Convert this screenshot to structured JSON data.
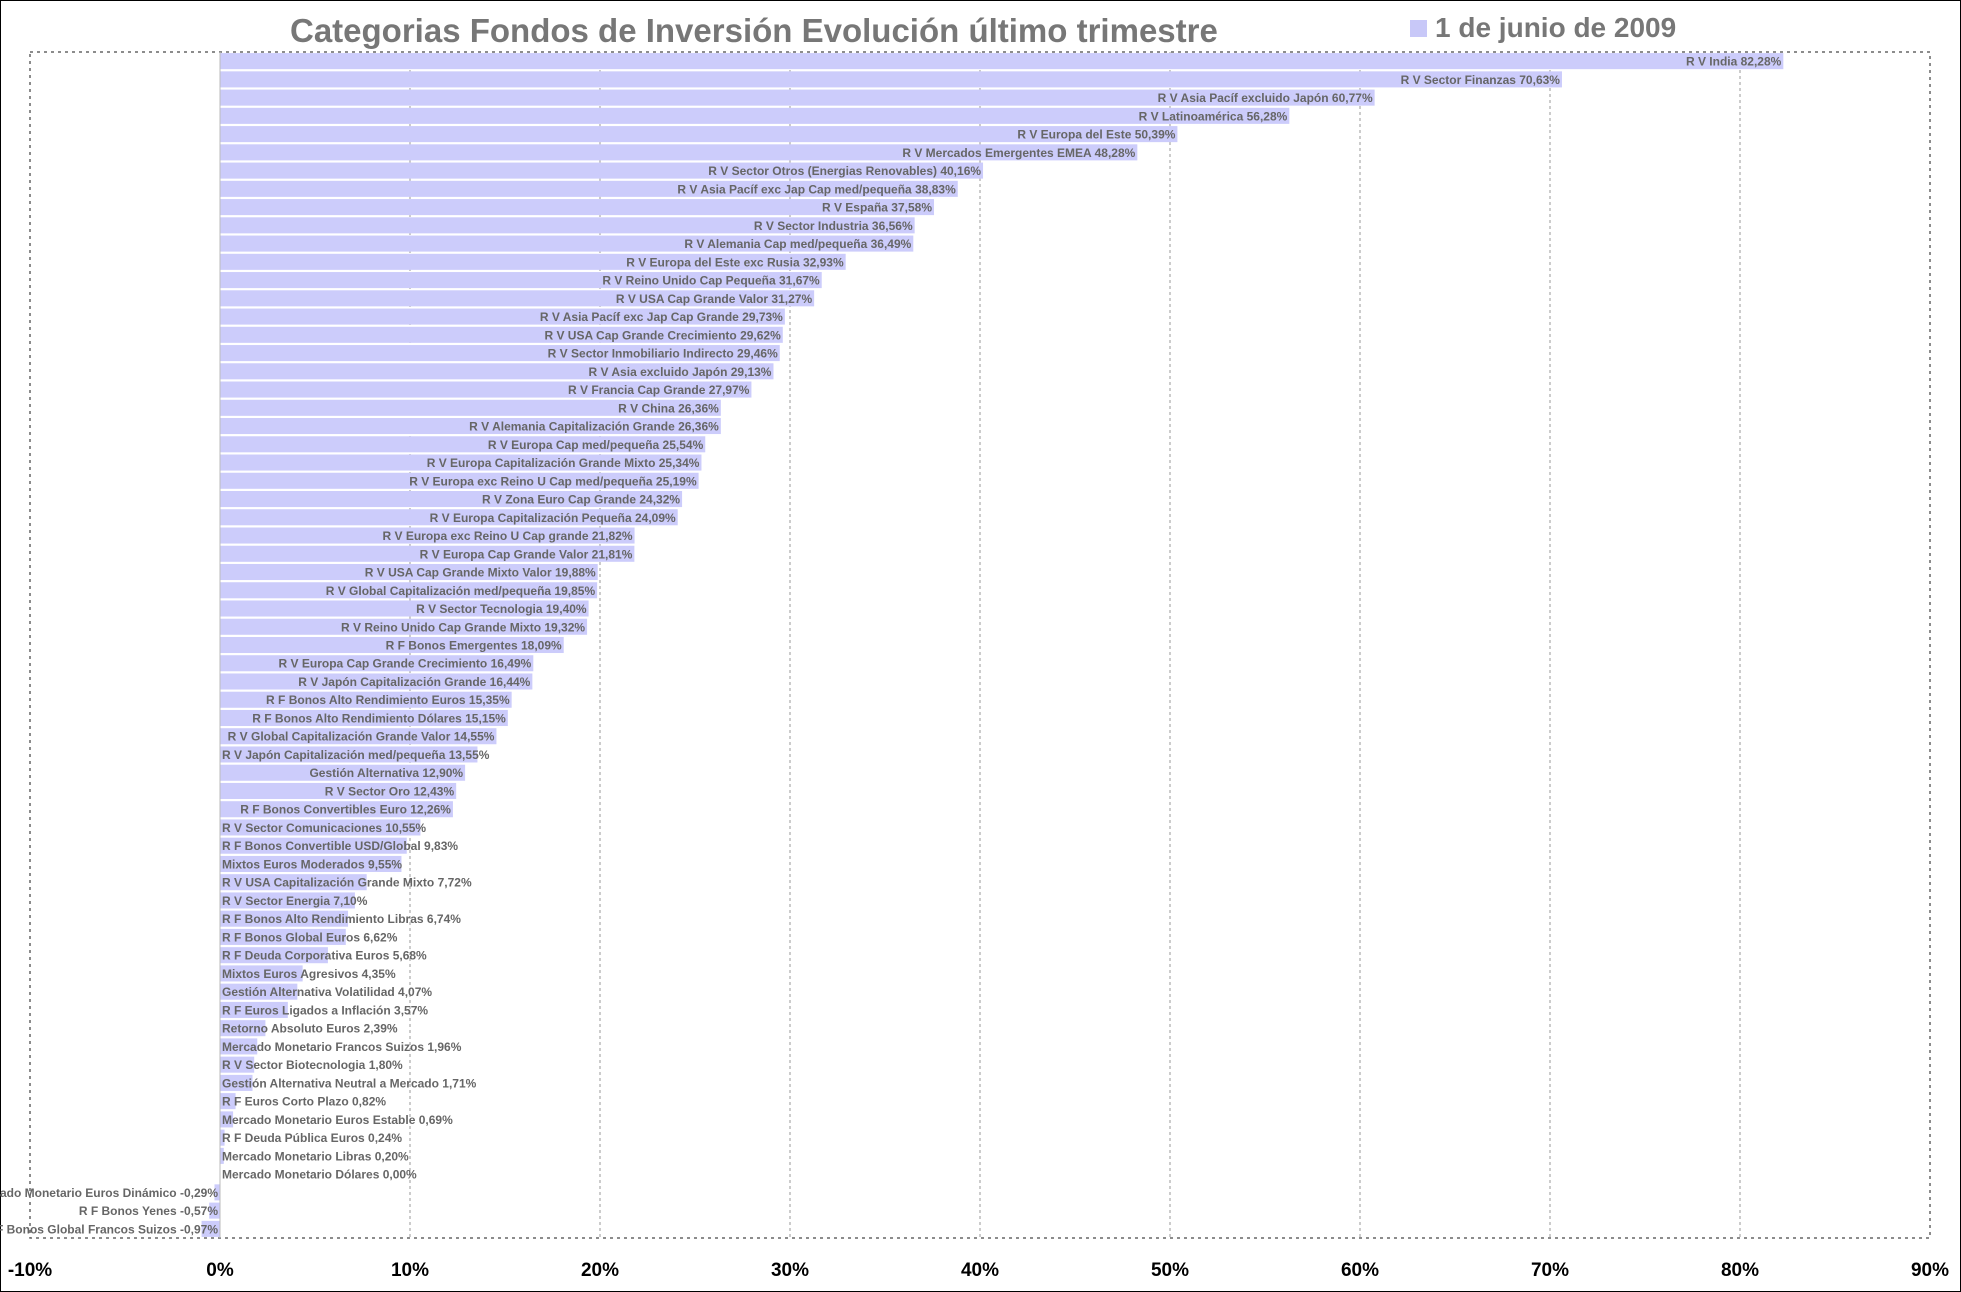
{
  "chart_data": {
    "type": "bar",
    "orientation": "horizontal",
    "title": "Categorias Fondos de Inversión Evolución último trimestre",
    "xlabel": "",
    "ylabel": "",
    "xlim": [
      -10,
      90
    ],
    "xticks": [
      "-10%",
      "0%",
      "10%",
      "20%",
      "30%",
      "40%",
      "50%",
      "60%",
      "70%",
      "80%",
      "90%"
    ],
    "grid": "vertical dashed",
    "legend_position": "top-right",
    "bar_color": "#ccccfb",
    "series": [
      {
        "name": "1 de junio de 2009",
        "categories": [
          "R V India",
          "R V Sector Finanzas",
          "R V Asia Pacíf excluido Japón",
          "R V Latinoamérica",
          "R V Europa del Este",
          "R V Mercados Emergentes EMEA",
          "R V Sector Otros (Energias Renovables)",
          "R V Asia Pacíf exc Jap Cap med/pequeña",
          "R V España",
          "R V Sector Industria",
          "R V Alemania Cap med/pequeña",
          "R V Europa del Este exc Rusia",
          "R V Reino Unido Cap Pequeña",
          "R V USA Cap Grande Valor",
          "R V Asia Pacíf exc Jap Cap Grande",
          "R V USA Cap Grande Crecimiento",
          "R V Sector Inmobiliario Indirecto",
          "R V Asia excluido Japón",
          "R V Francia Cap Grande",
          "R V China",
          "R V Alemania Capitalización Grande",
          "R V Europa Cap med/pequeña",
          "R V Europa Capitalización Grande Mixto",
          "R V Europa exc Reino U Cap med/pequeña",
          "R V Zona Euro Cap Grande",
          "R V Europa Capitalización Pequeña",
          "R V Europa exc Reino U Cap grande",
          "R V Europa Cap Grande Valor",
          "R V USA Cap Grande Mixto Valor",
          "R V Global Capitalización med/pequeña",
          "R V Sector Tecnologia",
          "R V Reino Unido Cap Grande Mixto",
          "R F Bonos Emergentes",
          "R V Europa Cap Grande Crecimiento",
          "R V Japón Capitalización Grande",
          "R F Bonos Alto Rendimiento Euros",
          "R F Bonos Alto Rendimiento Dólares",
          "R V Global Capitalización Grande Valor",
          "R V Japón Capitalización med/pequeña",
          "Gestión Alternativa",
          "R V Sector Oro",
          "R F Bonos Convertibles Euro",
          "R V Sector Comunicaciones",
          "R F Bonos Convertible USD/Global",
          "Mixtos Euros Moderados",
          "R V USA Capitalización Grande Mixto",
          "R V Sector Energia",
          "R F Bonos Alto Rendimiento Libras",
          "R F Bonos Global Euros",
          "R F Deuda Corporativa Euros",
          "Mixtos Euros Agresivos",
          "Gestión Alternativa Volatilidad",
          "R F Euros Ligados a Inflación",
          "Retorno Absoluto Euros",
          "Mercado Monetario Francos Suizos",
          "R V Sector Biotecnologia",
          "Gestión Alternativa Neutral a Mercado",
          "R F Euros Corto Plazo",
          "Mercado Monetario Euros Estable",
          "R F Deuda Pública Euros",
          "Mercado Monetario Libras",
          "Mercado Monetario Dólares",
          "Mercado Monetario Euros Dinámico",
          "R F Bonos Yenes",
          "R F Bonos Global Francos Suizos"
        ],
        "values": [
          82.28,
          70.63,
          60.77,
          56.28,
          50.39,
          48.28,
          40.16,
          38.83,
          37.58,
          36.56,
          36.49,
          32.93,
          31.67,
          31.27,
          29.73,
          29.62,
          29.46,
          29.13,
          27.97,
          26.36,
          26.36,
          25.54,
          25.34,
          25.19,
          24.32,
          24.09,
          21.82,
          21.81,
          19.88,
          19.85,
          19.4,
          19.32,
          18.09,
          16.49,
          16.44,
          15.35,
          15.15,
          14.55,
          13.55,
          12.9,
          12.43,
          12.26,
          10.55,
          9.83,
          9.55,
          7.72,
          7.1,
          6.74,
          6.62,
          5.68,
          4.35,
          4.07,
          3.57,
          2.39,
          1.96,
          1.8,
          1.71,
          0.82,
          0.69,
          0.24,
          0.2,
          0.0,
          -0.29,
          -0.57,
          -0.97
        ],
        "value_labels": [
          "82,28%",
          "70,63%",
          "60,77%",
          "56,28%",
          "50,39%",
          "48,28%",
          "40,16%",
          "38,83%",
          "37,58%",
          "36,56%",
          "36,49%",
          "32,93%",
          "31,67%",
          "31,27%",
          "29,73%",
          "29,62%",
          "29,46%",
          "29,13%",
          "27,97%",
          "26,36%",
          "26,36%",
          "25,54%",
          "25,34%",
          "25,19%",
          "24,32%",
          "24,09%",
          "21,82%",
          "21,81%",
          "19,88%",
          "19,85%",
          "19,40%",
          "19,32%",
          "18,09%",
          "16,49%",
          "16,44%",
          "15,35%",
          "15,15%",
          "14,55%",
          "13,55%",
          "12,90%",
          "12,43%",
          "12,26%",
          "10,55%",
          "9,83%",
          "9,55%",
          "7,72%",
          "7,10%",
          "6,74%",
          "6,62%",
          "5,68%",
          "4,35%",
          "4,07%",
          "3,57%",
          "2,39%",
          "1,96%",
          "1,80%",
          "1,71%",
          "0,82%",
          "0,69%",
          "0,24%",
          "0,20%",
          "0,00%",
          "-0,29%",
          "-0,57%",
          "-0,97%"
        ]
      }
    ]
  }
}
